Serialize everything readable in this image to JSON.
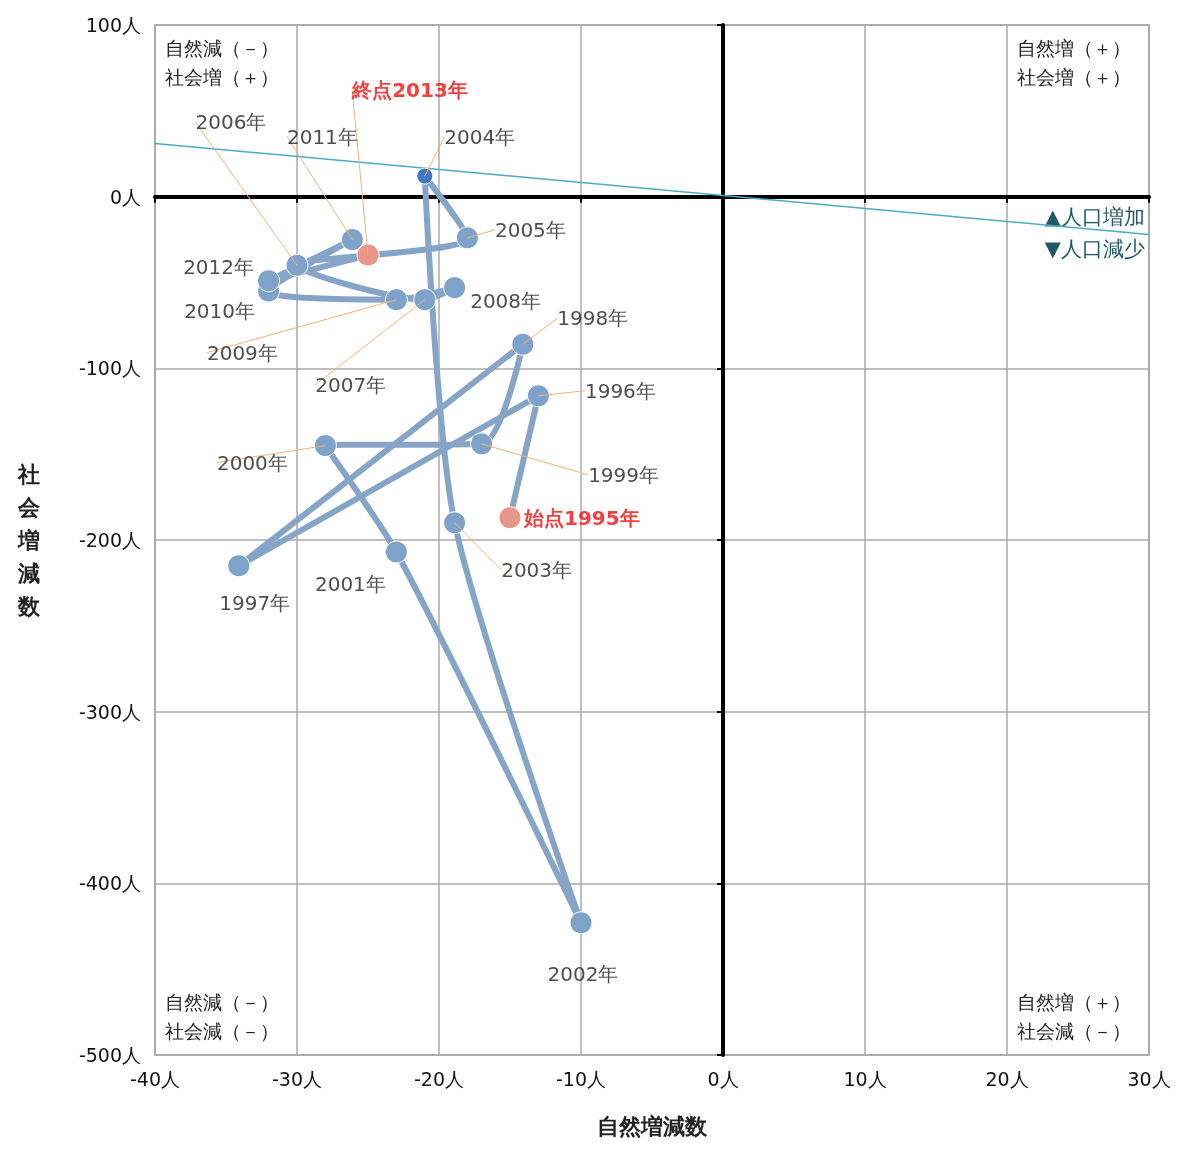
{
  "chart_data": {
    "type": "line",
    "xlabel": "自然増減数",
    "ylabel": "社会増減数",
    "xlim": [
      -40,
      30
    ],
    "ylim": [
      -500,
      100
    ],
    "xticks": [
      {
        "value": -40,
        "label": "-40人"
      },
      {
        "value": -30,
        "label": "-30人"
      },
      {
        "value": -20,
        "label": "-20人"
      },
      {
        "value": -10,
        "label": "-10人"
      },
      {
        "value": 0,
        "label": "0人"
      },
      {
        "value": 10,
        "label": "10人"
      },
      {
        "value": 20,
        "label": "20人"
      },
      {
        "value": 30,
        "label": "30人"
      }
    ],
    "yticks": [
      {
        "value": -500,
        "label": "-500人"
      },
      {
        "value": -400,
        "label": "-400人"
      },
      {
        "value": -300,
        "label": "-300人"
      },
      {
        "value": -200,
        "label": "-200人"
      },
      {
        "value": -100,
        "label": "-100人"
      },
      {
        "value": 0,
        "label": "0人"
      },
      {
        "value": 100,
        "label": "100人"
      }
    ],
    "grid": true,
    "marker": "circle",
    "line_style": "solid",
    "series": [
      {
        "color": "#86a4c8",
        "x": [
          -15,
          -13,
          -34.1,
          -14.1,
          -17,
          -28,
          -23,
          -10,
          -18.9,
          -21,
          -18,
          -30,
          -21,
          -18.9,
          -23,
          -32,
          -26.1,
          -32,
          -25
        ],
        "values": [
          -187,
          -116,
          -215,
          -86,
          -144,
          -145,
          -207,
          -423,
          -190,
          12,
          -24,
          -40,
          -60,
          -53,
          -60,
          -55,
          -25,
          -49,
          -34
        ],
        "colors": [
          "#e8968a",
          "#7fa2cb",
          "#7fa2cb",
          "#7fa2cb",
          "#7fa2cb",
          "#7fa2cb",
          "#7fa2cb",
          "#7fa2cb",
          "#7fa2cb",
          "#3f78c0",
          "#7fa2cb",
          "#7fa2cb",
          "#7fa2cb",
          "#7fa2cb",
          "#7fa2cb",
          "#7fa2cb",
          "#7fa2cb",
          "#7fa2cb",
          "#e8968a"
        ]
      },
      {
        "color": "#4bacc6",
        "x": [
          -40,
          30
        ],
        "values": [
          31,
          -22
        ],
        "marker": "none"
      }
    ],
    "annotations": [
      "自然減（－）社会増（＋）",
      "自然増（＋）社会増（＋）",
      "自然減（－）社会減（－）",
      "自然増（＋）社会減（－）",
      "▲人口増加",
      "▼人口減少",
      {
        "text": "始点1995年",
        "x": -15,
        "y": -187
      },
      {
        "text": "1996年",
        "x": -13,
        "y": -116
      },
      {
        "text": "1997年",
        "x": -34.1,
        "y": -215
      },
      {
        "text": "1998年",
        "x": -14.1,
        "y": -86
      },
      {
        "text": "1999年",
        "x": -17,
        "y": -144
      },
      {
        "text": "2000年",
        "x": -28,
        "y": -145
      },
      {
        "text": "2001年",
        "x": -23,
        "y": -207
      },
      {
        "text": "2002年",
        "x": -10,
        "y": -423
      },
      {
        "text": "2003年",
        "x": -18.9,
        "y": -190
      },
      {
        "text": "2004年",
        "x": -21,
        "y": 12
      },
      {
        "text": "2005年",
        "x": -18,
        "y": -24
      },
      {
        "text": "2006年",
        "x": -30,
        "y": -40
      },
      {
        "text": "2007年",
        "x": -21,
        "y": -60
      },
      {
        "text": "2008年",
        "x": -18.9,
        "y": -53
      },
      {
        "text": "2009年",
        "x": -23,
        "y": -60
      },
      {
        "text": "2010年",
        "x": -32,
        "y": -55
      },
      {
        "text": "2011年",
        "x": -26.1,
        "y": -25
      },
      {
        "text": "2012年",
        "x": -32,
        "y": -49
      },
      {
        "text": "終点2013年",
        "x": -25,
        "y": -34
      }
    ]
  }
}
